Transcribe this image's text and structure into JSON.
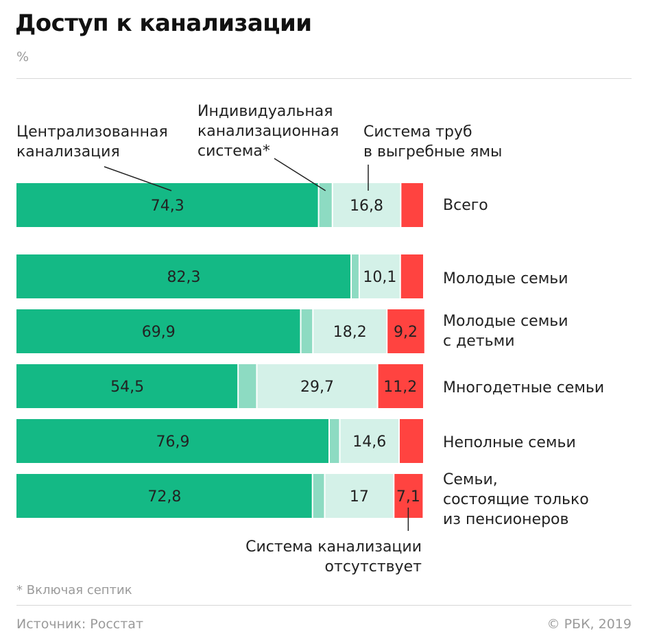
{
  "title": "Доступ к канализации",
  "unit": "%",
  "legend": {
    "central": "Централизованная\nканализация",
    "individual": "Индивидуальная\nканализационная\nсистема*",
    "pipes": "Система труб\nв выгребные ямы",
    "none": "Система канализации\nотсутствует"
  },
  "footnote": "* Включая септик",
  "source": "Источник: Росстат",
  "copyright": "© РБК, 2019",
  "colors": {
    "central": "#14b985",
    "individual": "#8ddbc2",
    "pipes": "#d4f1e8",
    "none": "#ff4340"
  },
  "chart_data": {
    "type": "bar",
    "orientation": "horizontal",
    "stacked": true,
    "unit": "%",
    "categories": [
      "Всего",
      "Молодые семьи",
      "Молодые семьи\nс детьми",
      "Многодетные семьи",
      "Неполные семьи",
      "Семьи,\nсостоящие только\nиз пенсионеров"
    ],
    "series": [
      {
        "name": "Централизованная канализация",
        "values": [
          74.3,
          82.3,
          69.9,
          54.5,
          76.9,
          72.8
        ]
      },
      {
        "name": "Индивидуальная канализационная система*",
        "values": [
          3.4,
          2.0,
          3.0,
          4.6,
          2.6,
          3.0
        ]
      },
      {
        "name": "Система труб в выгребные ямы",
        "values": [
          16.8,
          10.1,
          18.2,
          29.7,
          14.6,
          17
        ]
      },
      {
        "name": "Система канализации отсутствует",
        "values": [
          5.5,
          5.6,
          9.2,
          11.2,
          5.9,
          7.1
        ]
      }
    ],
    "value_labels": [
      [
        "74,3",
        "",
        "16,8",
        ""
      ],
      [
        "82,3",
        "",
        "10,1",
        ""
      ],
      [
        "69,9",
        "",
        "18,2",
        "9,2"
      ],
      [
        "54,5",
        "",
        "29,7",
        "11,2"
      ],
      [
        "76,9",
        "",
        "14,6",
        ""
      ],
      [
        "72,8",
        "",
        "17",
        "7,1"
      ]
    ],
    "xlim": [
      0,
      100
    ]
  }
}
